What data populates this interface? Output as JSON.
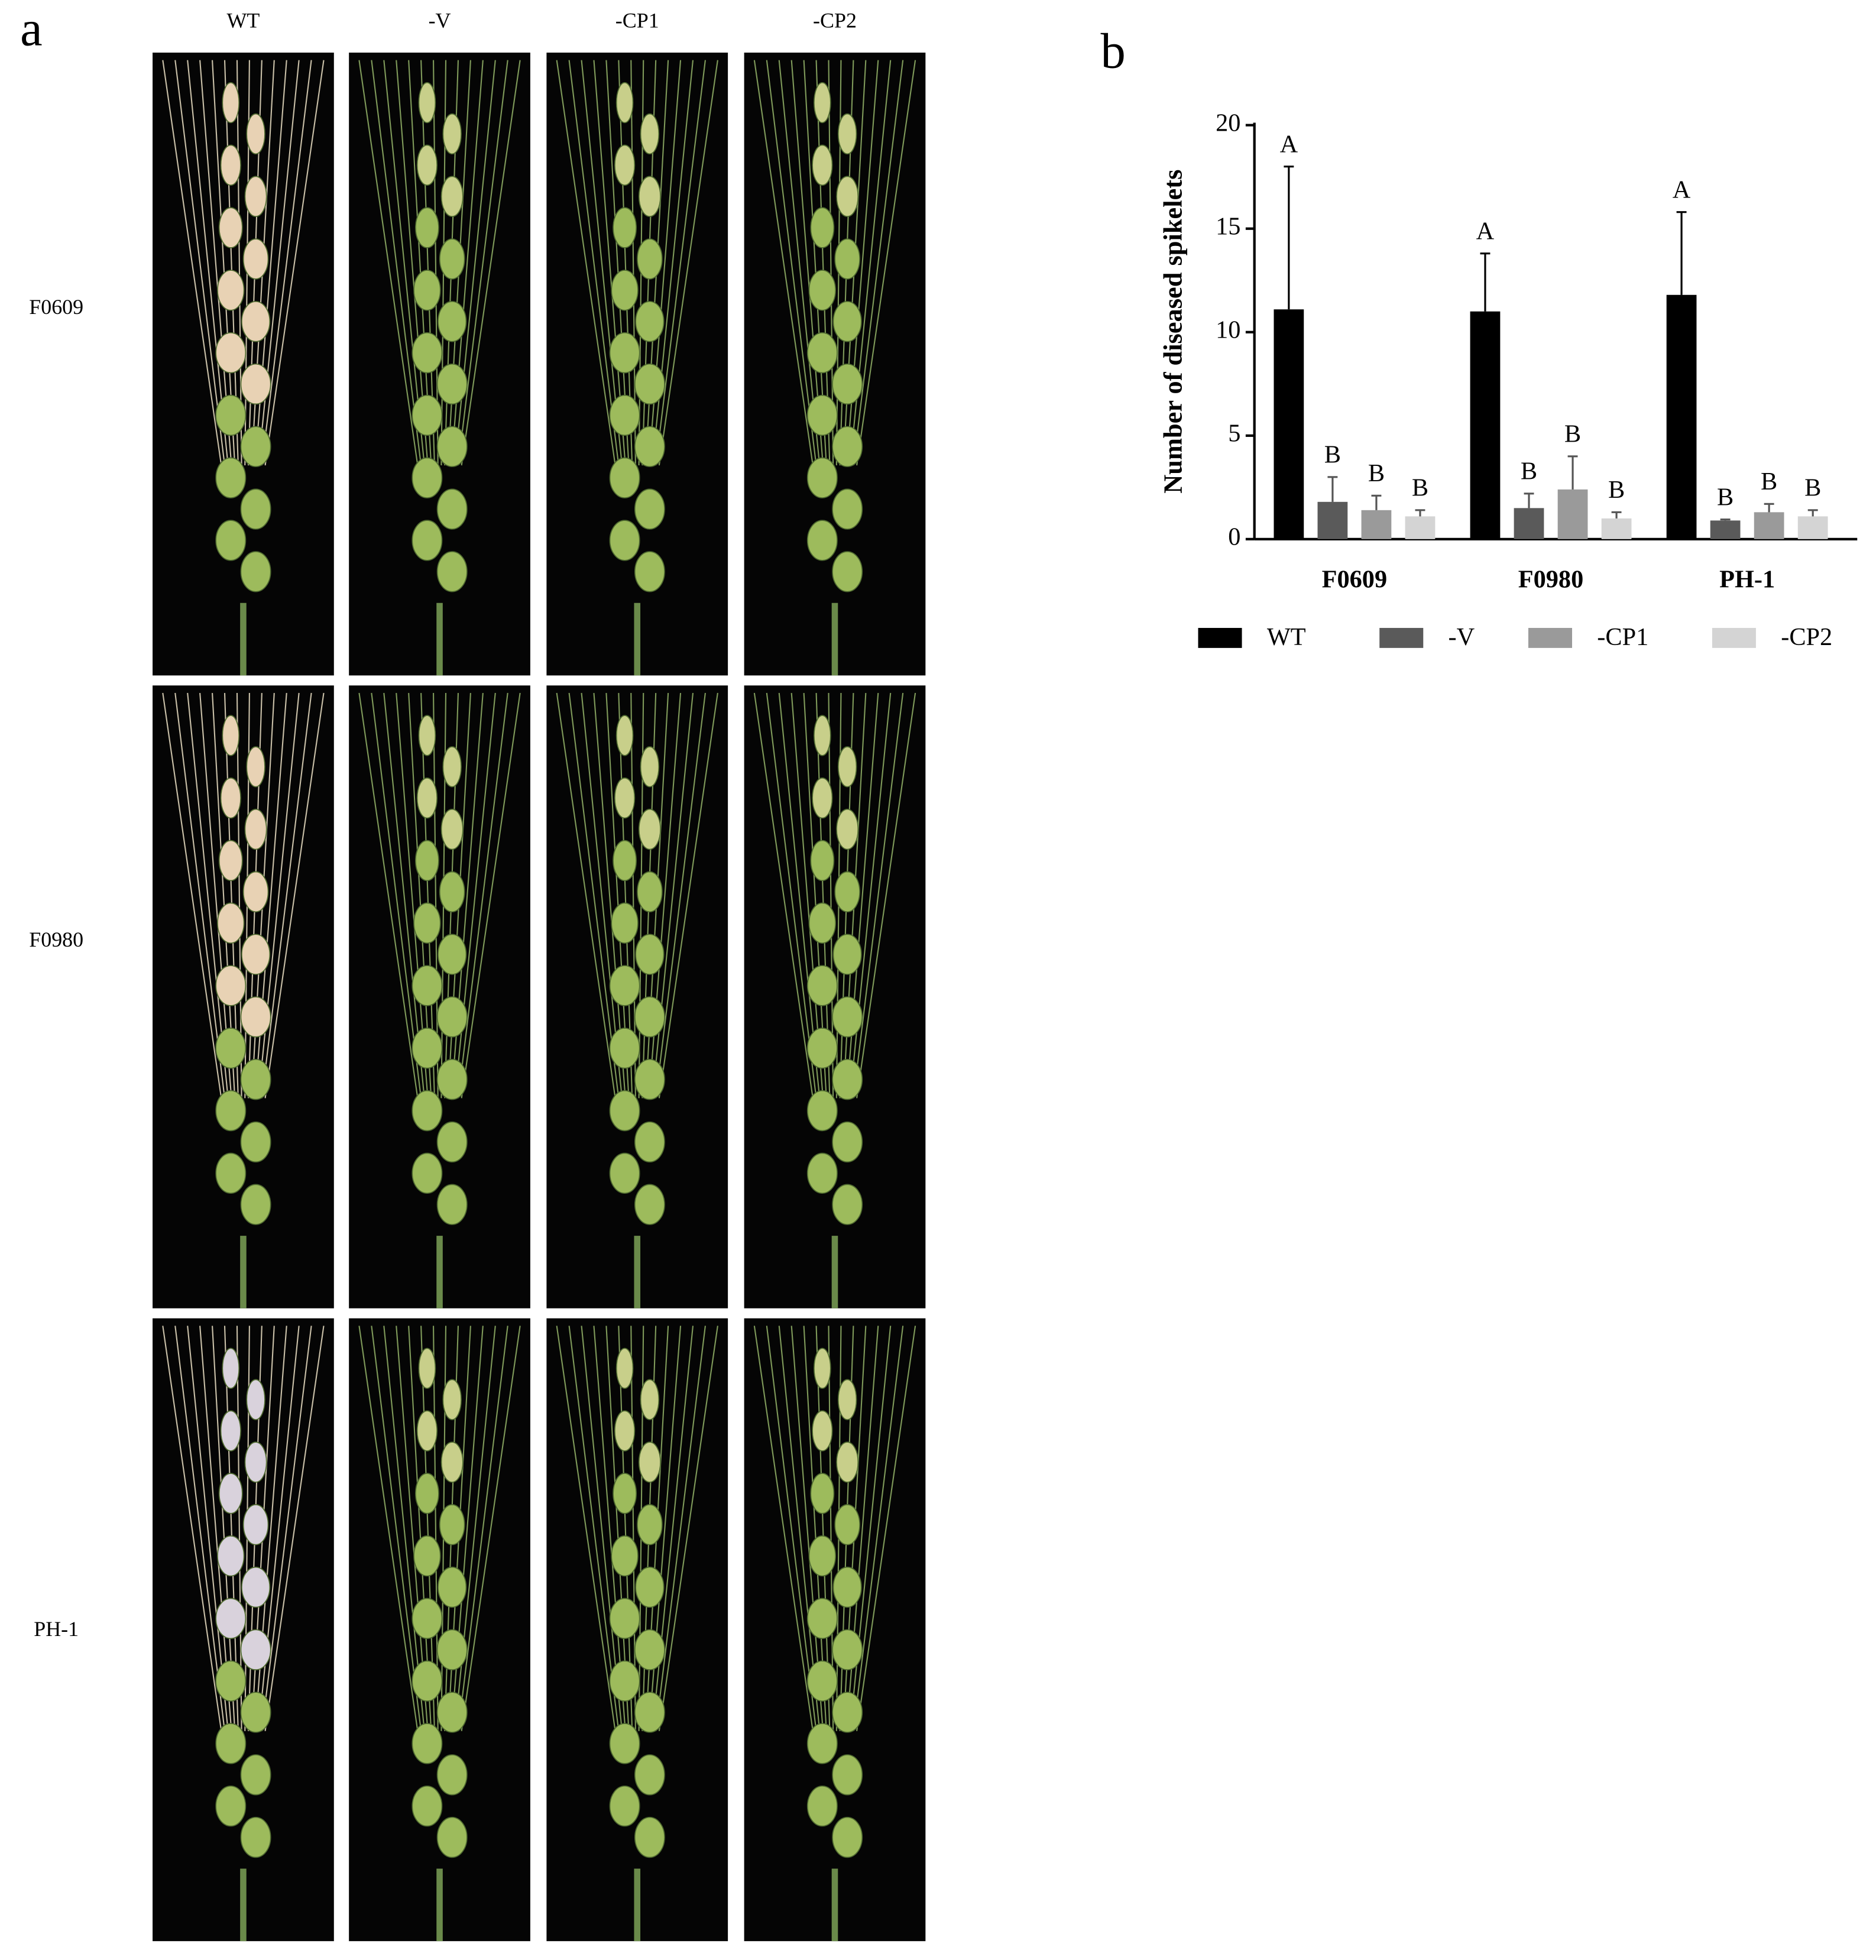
{
  "panel_a": {
    "label": "a",
    "columns": [
      "WT",
      "-V",
      "-CP1",
      "-CP2"
    ],
    "rows": [
      "F0609",
      "F0980",
      "PH-1"
    ]
  },
  "panel_b": {
    "label": "b"
  },
  "chart_data": {
    "type": "bar",
    "y_label": "Number of diseased spikelets",
    "categories": [
      "F0609",
      "F0980",
      "PH-1"
    ],
    "series": [
      {
        "name": "WT",
        "color": "#000000",
        "values": [
          11.1,
          11.0,
          11.8
        ],
        "errors": [
          6.9,
          2.8,
          4.0
        ],
        "letters": [
          "A",
          "A",
          "A"
        ]
      },
      {
        "name": "-V",
        "color": "#5a5a5a",
        "values": [
          1.8,
          1.5,
          0.9
        ],
        "errors": [
          1.2,
          0.7,
          0.05
        ],
        "letters": [
          "B",
          "B",
          "B"
        ]
      },
      {
        "name": "-CP1",
        "color": "#9a9a9a",
        "values": [
          1.4,
          2.4,
          1.3
        ],
        "errors": [
          0.7,
          1.6,
          0.4
        ],
        "letters": [
          "B",
          "B",
          "B"
        ]
      },
      {
        "name": "-CP2",
        "color": "#d4d4d4",
        "values": [
          1.1,
          1.0,
          1.1
        ],
        "errors": [
          0.3,
          0.3,
          0.3
        ],
        "letters": [
          "B",
          "B",
          "B"
        ]
      }
    ],
    "ylim": [
      0,
      20
    ],
    "yticks": [
      0,
      5,
      10,
      15,
      20
    ],
    "grid": false,
    "legend": "bottom"
  }
}
